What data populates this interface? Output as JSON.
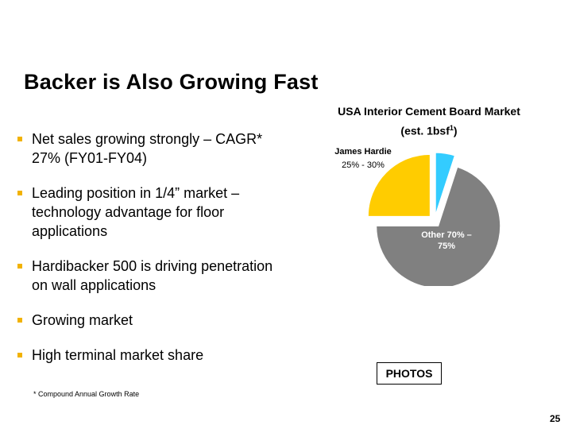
{
  "slide": {
    "title": "Backer is Also Growing Fast",
    "bullets": [
      "Net sales growing strongly – CAGR* 27% (FY01-FY04)",
      "Leading position in 1/4” market – technology advantage for floor applications",
      "Hardibacker 500 is driving penetration on wall applications",
      "Growing market",
      "High terminal market share"
    ],
    "footnote": "* Compound Annual Growth Rate",
    "photos_label": "PHOTOS",
    "page_number": "25",
    "bullet_color": "#f2b200"
  },
  "chart_data": {
    "type": "pie",
    "title_line1": "USA Interior Cement Board Market",
    "title_line2_main": "(est. 1bsf",
    "title_line2_sup": "1",
    "title_line2_end": ")",
    "slices": [
      {
        "label_line1": "James Hardie",
        "label_line2": "25% - 30%",
        "value": 25,
        "color": "#ffcc00",
        "exploded": true
      },
      {
        "label_line1": "Other 70% –",
        "label_line2": "75%",
        "value": 70,
        "color": "#808080",
        "exploded": true
      },
      {
        "label_line1": "",
        "label_line2": "",
        "value": 5,
        "color": "#33ccff",
        "exploded": true
      }
    ]
  }
}
